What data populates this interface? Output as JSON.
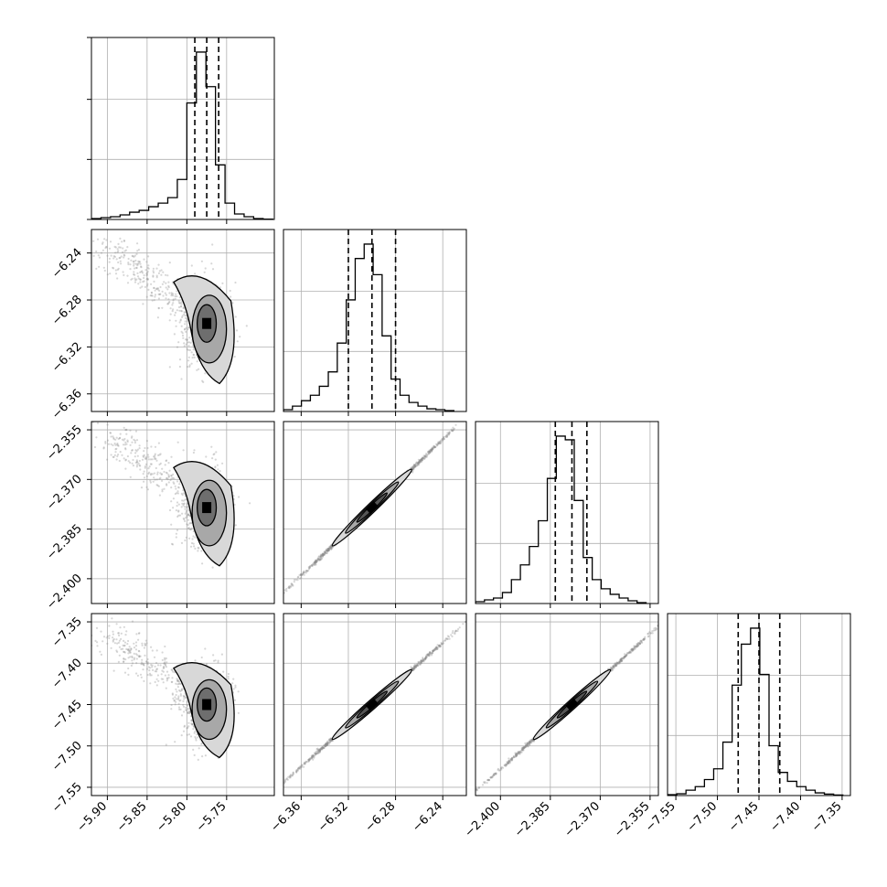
{
  "chart_data": [
    {
      "type": "corner",
      "n_params": 4,
      "parameters": [
        {
          "index": 0,
          "quantiles": [
            -5.79,
            -5.775,
            -5.76
          ],
          "range": [
            -5.92,
            -5.69
          ],
          "ticks": [
            "-5.90",
            "-5.85",
            "-5.80",
            "-5.75"
          ],
          "tick_values": [
            -5.9,
            -5.85,
            -5.8,
            -5.75
          ]
        },
        {
          "index": 1,
          "quantiles": [
            -6.32,
            -6.3,
            -6.28
          ],
          "range": [
            -6.375,
            -6.22
          ],
          "ticks": [
            "-6.36",
            "-6.32",
            "-6.28",
            "-6.24"
          ],
          "tick_values": [
            -6.36,
            -6.32,
            -6.28,
            -6.24
          ]
        },
        {
          "index": 2,
          "quantiles": [
            -2.3835,
            -2.3785,
            -2.374
          ],
          "range": [
            -2.4075,
            -2.3525
          ],
          "ticks": [
            "-2.400",
            "-2.385",
            "-2.370",
            "-2.355"
          ],
          "tick_values": [
            -2.4,
            -2.385,
            -2.37,
            -2.355
          ]
        },
        {
          "index": 3,
          "quantiles": [
            -7.475,
            -7.45,
            -7.425
          ],
          "range": [
            -7.56,
            -7.34
          ],
          "ticks": [
            "-7.55",
            "-7.50",
            "-7.45",
            "-7.40",
            "-7.35"
          ],
          "tick_values": [
            -7.55,
            -7.5,
            -7.45,
            -7.4,
            -7.35
          ]
        }
      ],
      "histograms": [
        {
          "param": 0,
          "bin_edges": [
            -5.92,
            -5.908,
            -5.896,
            -5.884,
            -5.872,
            -5.86,
            -5.848,
            -5.836,
            -5.824,
            -5.812,
            -5.8,
            -5.788,
            -5.776,
            -5.764,
            -5.752,
            -5.74,
            -5.728,
            -5.716,
            -5.704,
            -5.692
          ],
          "counts": [
            0.005,
            0.01,
            0.015,
            0.025,
            0.04,
            0.05,
            0.07,
            0.09,
            0.12,
            0.22,
            0.64,
            0.92,
            0.73,
            0.3,
            0.09,
            0.03,
            0.015,
            0.005,
            0.002
          ]
        },
        {
          "param": 1,
          "bin_edges": [
            -6.375,
            -6.3674,
            -6.3598,
            -6.3522,
            -6.3446,
            -6.337,
            -6.3294,
            -6.3218,
            -6.3142,
            -6.3066,
            -6.299,
            -6.2914,
            -6.2838,
            -6.2762,
            -6.2686,
            -6.261,
            -6.2534,
            -6.2458,
            -6.2382,
            -6.2306
          ],
          "counts": [
            0.01,
            0.03,
            0.06,
            0.09,
            0.14,
            0.22,
            0.38,
            0.62,
            0.85,
            0.93,
            0.76,
            0.42,
            0.18,
            0.09,
            0.05,
            0.03,
            0.015,
            0.01,
            0.005
          ]
        },
        {
          "param": 2,
          "bin_edges": [
            -2.4075,
            -2.4048,
            -2.4021,
            -2.3994,
            -2.3967,
            -2.394,
            -2.3913,
            -2.3886,
            -2.3859,
            -2.3832,
            -2.3805,
            -2.3778,
            -2.3751,
            -2.3724,
            -2.3697,
            -2.367,
            -2.3643,
            -2.3616,
            -2.3589,
            -2.3562
          ],
          "counts": [
            0.01,
            0.02,
            0.03,
            0.06,
            0.13,
            0.21,
            0.31,
            0.45,
            0.68,
            0.91,
            0.89,
            0.56,
            0.25,
            0.13,
            0.08,
            0.05,
            0.03,
            0.015,
            0.005
          ]
        },
        {
          "param": 3,
          "bin_edges": [
            -7.56,
            -7.5489,
            -7.5378,
            -7.5267,
            -7.5156,
            -7.5045,
            -7.4934,
            -7.4823,
            -7.4712,
            -7.4601,
            -7.449,
            -7.4379,
            -7.4268,
            -7.4157,
            -7.4046,
            -7.3935,
            -7.3824,
            -7.3713,
            -7.3602,
            -7.3491
          ],
          "counts": [
            0.005,
            0.01,
            0.03,
            0.05,
            0.09,
            0.15,
            0.3,
            0.62,
            0.85,
            0.94,
            0.68,
            0.28,
            0.13,
            0.08,
            0.05,
            0.03,
            0.015,
            0.008,
            0.003
          ]
        }
      ],
      "pairs": [
        {
          "x": 0,
          "y": 1,
          "relation": "curved",
          "mean": [
            -5.775,
            -6.3
          ],
          "spread": [
            0.016,
            0.016
          ],
          "corr": -0.1,
          "tail": [
            -5.9,
            -6.235
          ],
          "contours": [
            0.5,
            0.85,
            1.2
          ]
        },
        {
          "x": 0,
          "y": 2,
          "relation": "curved",
          "mean": [
            -5.775,
            -2.3785
          ],
          "spread": [
            0.016,
            0.0055
          ],
          "corr": -0.1,
          "tail": [
            -5.9,
            -2.356
          ],
          "contours": [
            0.5,
            0.85,
            1.2
          ]
        },
        {
          "x": 1,
          "y": 2,
          "relation": "linear",
          "mean": [
            -6.3,
            -2.3785
          ],
          "spread": [
            0.016,
            0.0055
          ],
          "corr": 0.99,
          "contours": [
            0.5,
            0.85,
            1.2
          ]
        },
        {
          "x": 0,
          "y": 3,
          "relation": "curved",
          "mean": [
            -5.775,
            -7.45
          ],
          "spread": [
            0.016,
            0.02
          ],
          "corr": -0.1,
          "tail": [
            -5.9,
            -7.365
          ],
          "contours": [
            0.5,
            0.85,
            1.2
          ]
        },
        {
          "x": 1,
          "y": 3,
          "relation": "linear",
          "mean": [
            -6.3,
            -7.45
          ],
          "spread": [
            0.016,
            0.02
          ],
          "corr": 0.99,
          "contours": [
            0.5,
            0.85,
            1.2
          ]
        },
        {
          "x": 2,
          "y": 3,
          "relation": "linear",
          "mean": [
            -2.3785,
            -7.45
          ],
          "spread": [
            0.0055,
            0.02
          ],
          "corr": 0.99,
          "contours": [
            0.5,
            0.85,
            1.2
          ]
        }
      ],
      "grid": true,
      "title": "",
      "axis_labels": []
    }
  ],
  "colors": {
    "scatter": "#8c8c8c",
    "hist_line": "#000000",
    "quantile_line": "#000000",
    "grid": "#b0b0b0",
    "density_dark": "#000000",
    "density_light": "#d8d8d8"
  }
}
